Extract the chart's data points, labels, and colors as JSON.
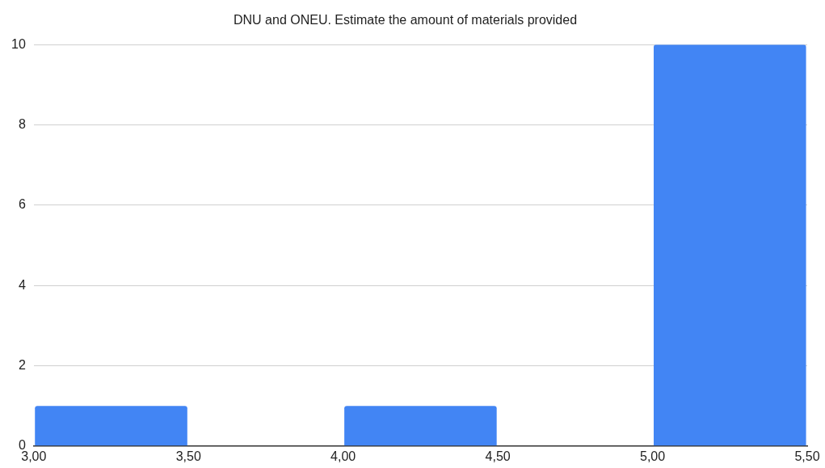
{
  "chart_data": {
    "type": "histogram",
    "title": "DNU and ONEU. Estimate the amount of materials provided",
    "bins": [
      3.0,
      3.5,
      4.0,
      4.5,
      5.0,
      5.5
    ],
    "values": [
      1,
      0,
      1,
      0,
      10
    ],
    "color": "#4285f4",
    "xlim": [
      3.0,
      5.5
    ],
    "xticks": [
      {
        "value": 3.0,
        "label": "3,00"
      },
      {
        "value": 3.5,
        "label": "3,50"
      },
      {
        "value": 4.0,
        "label": "4,00"
      },
      {
        "value": 4.5,
        "label": "4,50"
      },
      {
        "value": 5.0,
        "label": "5,00"
      },
      {
        "value": 5.5,
        "label": "5,50"
      }
    ],
    "ylim": [
      0,
      10
    ],
    "yticks": [
      0,
      2,
      4,
      6,
      8,
      10
    ],
    "grid": "y"
  }
}
